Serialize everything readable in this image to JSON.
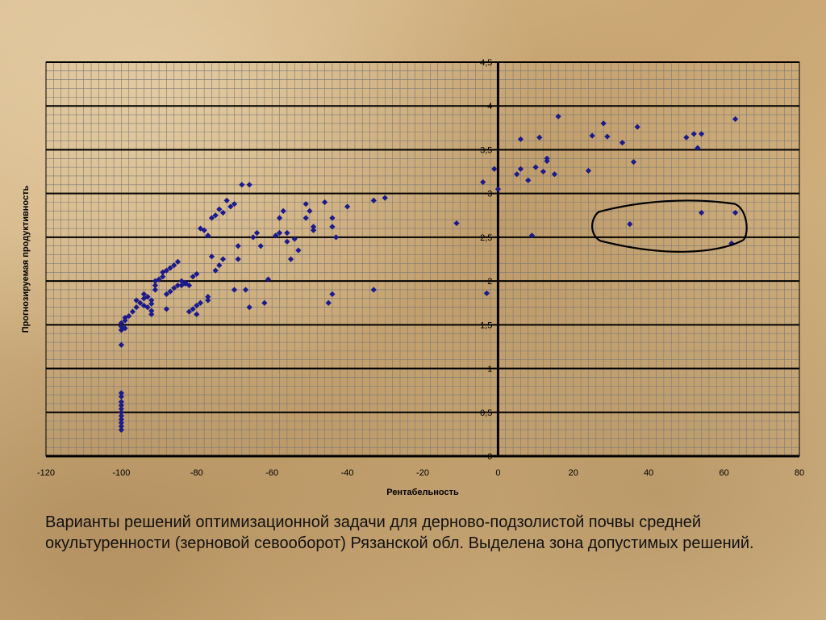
{
  "chart_data": {
    "type": "scatter",
    "xlabel": "Рентабельность",
    "ylabel": "Прогнозируемая продуктивность",
    "xlim": [
      -120,
      80
    ],
    "ylim": [
      0,
      4.5
    ],
    "grid": true,
    "x_ticks": [
      "-120",
      "-100",
      "-80",
      "-60",
      "-40",
      "-20",
      "0",
      "20",
      "40",
      "60",
      "80"
    ],
    "y_ticks": [
      "0",
      "0,5",
      "1",
      "1,5",
      "2",
      "2,5",
      "3",
      "3,5",
      "4",
      "4,5"
    ],
    "marker_color": "#1a1a8c",
    "highlight": {
      "shape": "closed-loop",
      "description_visible": false,
      "x_range": [
        25,
        66
      ],
      "y_range": [
        2.33,
        2.9
      ]
    },
    "points": [
      [
        -100,
        0.3
      ],
      [
        -100,
        0.34
      ],
      [
        -100,
        0.38
      ],
      [
        -100,
        0.42
      ],
      [
        -100,
        0.46
      ],
      [
        -100,
        0.5
      ],
      [
        -100,
        0.54
      ],
      [
        -100,
        0.58
      ],
      [
        -100,
        0.62
      ],
      [
        -100,
        0.68
      ],
      [
        -100,
        0.72
      ],
      [
        -100,
        1.27
      ],
      [
        -100,
        1.44
      ],
      [
        -100,
        1.48
      ],
      [
        -100,
        1.52
      ],
      [
        -99,
        1.55
      ],
      [
        -99,
        1.58
      ],
      [
        -99,
        1.46
      ],
      [
        -98,
        1.6
      ],
      [
        -97,
        1.65
      ],
      [
        -96,
        1.7
      ],
      [
        -96,
        1.78
      ],
      [
        -95,
        1.75
      ],
      [
        -94,
        1.72
      ],
      [
        -94,
        1.8
      ],
      [
        -94,
        1.85
      ],
      [
        -93,
        1.82
      ],
      [
        -93,
        1.7
      ],
      [
        -92,
        1.74
      ],
      [
        -92,
        1.78
      ],
      [
        -92,
        1.62
      ],
      [
        -92,
        1.66
      ],
      [
        -91,
        1.9
      ],
      [
        -91,
        1.95
      ],
      [
        -91,
        2.0
      ],
      [
        -90,
        2.02
      ],
      [
        -89,
        2.05
      ],
      [
        -89,
        2.1
      ],
      [
        -88,
        2.12
      ],
      [
        -88,
        1.68
      ],
      [
        -88,
        1.85
      ],
      [
        -87,
        2.15
      ],
      [
        -87,
        1.88
      ],
      [
        -86,
        2.18
      ],
      [
        -86,
        1.92
      ],
      [
        -85,
        2.22
      ],
      [
        -85,
        1.95
      ],
      [
        -84,
        2.0
      ],
      [
        -84,
        1.95
      ],
      [
        -83,
        1.97
      ],
      [
        -83,
        1.98
      ],
      [
        -82,
        1.95
      ],
      [
        -82,
        1.65
      ],
      [
        -81,
        2.05
      ],
      [
        -81,
        1.68
      ],
      [
        -80,
        2.08
      ],
      [
        -80,
        1.72
      ],
      [
        -80,
        1.62
      ],
      [
        -79,
        1.75
      ],
      [
        -79,
        2.6
      ],
      [
        -78,
        2.58
      ],
      [
        -77,
        2.52
      ],
      [
        -77,
        1.78
      ],
      [
        -77,
        1.82
      ],
      [
        -76,
        2.28
      ],
      [
        -76,
        2.72
      ],
      [
        -75,
        2.12
      ],
      [
        -75,
        2.75
      ],
      [
        -74,
        2.18
      ],
      [
        -74,
        2.82
      ],
      [
        -73,
        2.25
      ],
      [
        -73,
        2.78
      ],
      [
        -72,
        2.92
      ],
      [
        -71,
        2.85
      ],
      [
        -70,
        2.88
      ],
      [
        -70,
        1.9
      ],
      [
        -69,
        2.4
      ],
      [
        -69,
        2.25
      ],
      [
        -68,
        3.1
      ],
      [
        -67,
        1.9
      ],
      [
        -66,
        3.1
      ],
      [
        -66,
        1.7
      ],
      [
        -65,
        2.5
      ],
      [
        -64,
        2.55
      ],
      [
        -63,
        2.4
      ],
      [
        -62,
        1.75
      ],
      [
        -61,
        2.02
      ],
      [
        -59,
        2.52
      ],
      [
        -58,
        2.55
      ],
      [
        -58,
        2.72
      ],
      [
        -57,
        2.8
      ],
      [
        -56,
        2.55
      ],
      [
        -56,
        2.45
      ],
      [
        -55,
        2.25
      ],
      [
        -54,
        2.48
      ],
      [
        -53,
        2.35
      ],
      [
        -51,
        2.88
      ],
      [
        -51,
        2.72
      ],
      [
        -50,
        2.8
      ],
      [
        -49,
        2.62
      ],
      [
        -49,
        2.58
      ],
      [
        -46,
        2.9
      ],
      [
        -45,
        1.75
      ],
      [
        -44,
        1.85
      ],
      [
        -44,
        2.72
      ],
      [
        -44,
        2.62
      ],
      [
        -43,
        2.5
      ],
      [
        -40,
        2.85
      ],
      [
        -33,
        1.9
      ],
      [
        -33,
        2.92
      ],
      [
        -30,
        2.95
      ],
      [
        -11,
        2.66
      ],
      [
        -4,
        3.13
      ],
      [
        -3,
        1.86
      ],
      [
        -1,
        3.28
      ],
      [
        0,
        3.05
      ],
      [
        5,
        3.22
      ],
      [
        6,
        3.28
      ],
      [
        6,
        3.62
      ],
      [
        8,
        3.15
      ],
      [
        9,
        2.52
      ],
      [
        10,
        3.3
      ],
      [
        11,
        3.64
      ],
      [
        12,
        3.25
      ],
      [
        13,
        3.4
      ],
      [
        13,
        3.37
      ],
      [
        15,
        3.22
      ],
      [
        16,
        3.88
      ],
      [
        24,
        3.26
      ],
      [
        25,
        3.66
      ],
      [
        28,
        3.8
      ],
      [
        29,
        3.65
      ],
      [
        33,
        3.58
      ],
      [
        35,
        2.65
      ],
      [
        36,
        3.36
      ],
      [
        37,
        3.76
      ],
      [
        50,
        3.64
      ],
      [
        52,
        3.68
      ],
      [
        53,
        3.52
      ],
      [
        54,
        3.68
      ],
      [
        54,
        2.78
      ],
      [
        62,
        2.43
      ],
      [
        63,
        2.78
      ],
      [
        63,
        3.85
      ]
    ]
  },
  "caption": "Варианты решений оптимизационной задачи для дерново-подзолистой почвы средней окультуренности (зерновой севооборот) Рязанской обл. Выделена зона допустимых решений."
}
